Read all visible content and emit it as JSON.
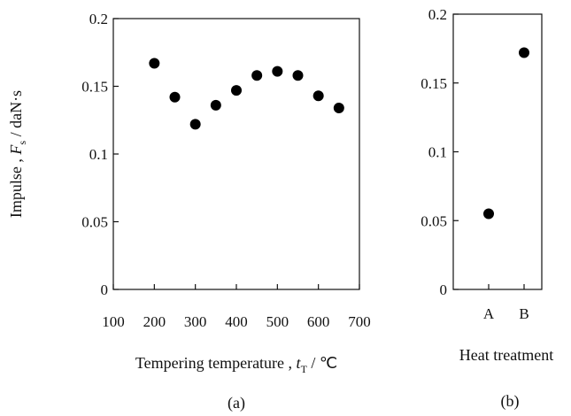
{
  "chart_data": [
    {
      "type": "scatter",
      "panel_label": "(a)",
      "xlabel": {
        "text": "Tempering temperature",
        "sep": " , ",
        "symbol": "t",
        "subscript": "T",
        "unit": " / ℃"
      },
      "ylabel": {
        "text": "Impulse",
        "sep": " , ",
        "symbol": "F",
        "subscript": "s",
        "unit": " / daN·s"
      },
      "xlim": [
        100,
        700
      ],
      "ylim": [
        0,
        0.2
      ],
      "xticks": [
        "100",
        "200",
        "300",
        "400",
        "500",
        "600",
        "700"
      ],
      "yticks": [
        "0",
        "0.05",
        "0.1",
        "0.15",
        "0.2"
      ],
      "x": [
        200,
        250,
        300,
        350,
        400,
        450,
        500,
        550,
        600,
        650
      ],
      "y": [
        0.167,
        0.142,
        0.122,
        0.136,
        0.147,
        0.158,
        0.161,
        0.158,
        0.143,
        0.134
      ]
    },
    {
      "type": "scatter",
      "panel_label": "(b)",
      "xlabel": {
        "text": "Heat treatment"
      },
      "ylim": [
        0,
        0.2
      ],
      "yticks": [
        "0",
        "0.05",
        "0.1",
        "0.15",
        "0.2"
      ],
      "categories": [
        "A",
        "B"
      ],
      "values": [
        0.055,
        0.172
      ]
    }
  ]
}
